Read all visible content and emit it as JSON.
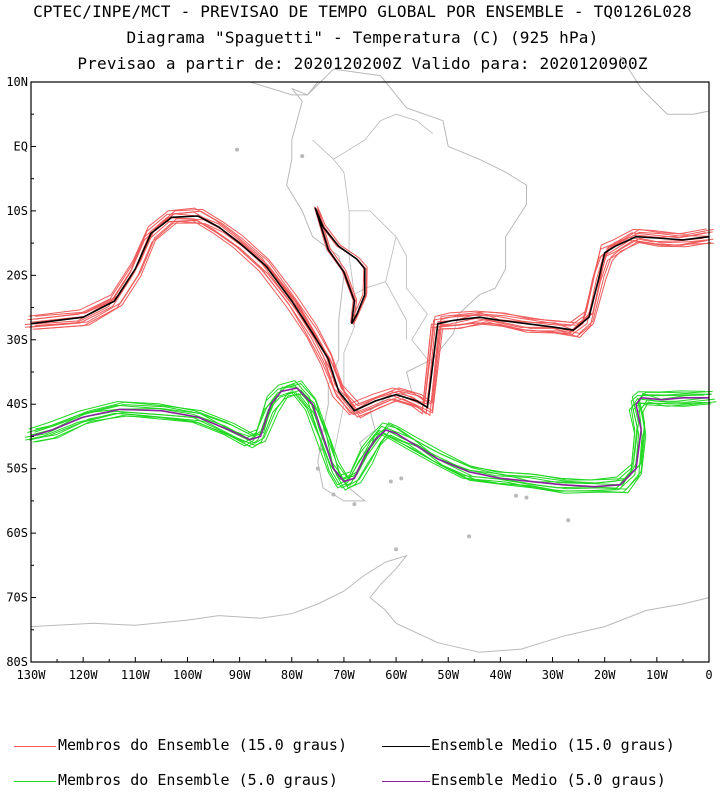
{
  "header": {
    "line1": "CPTEC/INPE/MCT - PREVISAO DE TEMPO GLOBAL POR ENSEMBLE - TQ0126L028",
    "line2": "Diagrama \"Spaguetti\" - Temperatura (C) (925 hPa)",
    "line3": "Previsao a partir de: 2020120200Z  Valido para: 2020120900Z"
  },
  "chart_data": {
    "type": "line",
    "map_background": "South America and Antarctic coastlines (gray)",
    "xlim": [
      -130,
      0
    ],
    "ylim": [
      -80,
      10
    ],
    "x_ticks": [
      "130W",
      "120W",
      "110W",
      "100W",
      "90W",
      "80W",
      "70W",
      "60W",
      "50W",
      "40W",
      "30W",
      "20W",
      "10W",
      "0"
    ],
    "y_ticks": [
      "10N",
      "EQ",
      "10S",
      "20S",
      "30S",
      "40S",
      "50S",
      "60S",
      "70S",
      "80S"
    ],
    "legend_position": "bottom",
    "series": [
      {
        "name": "Membros do Ensemble (15.0 graus)",
        "color": "#f05a5a",
        "role": "members",
        "isotherm": 15.0,
        "x": [
          -130,
          -120,
          -114,
          -110,
          -107,
          -103,
          -98,
          -94,
          -90,
          -85,
          -80,
          -76,
          -73,
          -71,
          -68,
          -64,
          -60,
          -56,
          -54,
          -52,
          -49,
          -44,
          -40,
          -35,
          -30,
          -26,
          -23,
          -21,
          -20,
          -18,
          -14,
          -10,
          -5,
          0
        ],
        "y": [
          -27.5,
          -26.5,
          -24,
          -19,
          -13.5,
          -11,
          -10.8,
          -12.5,
          -15,
          -18.5,
          -24,
          -29,
          -33,
          -38,
          -41,
          -39.5,
          -38.5,
          -39.5,
          -40.5,
          -27.5,
          -27,
          -26.5,
          -27,
          -27.5,
          -28,
          -28.5,
          -26.5,
          -20,
          -16.5,
          -15.5,
          -14,
          -14.2,
          -14.5,
          -14
        ]
      },
      {
        "name": "Ensemble Medio (15.0 graus)",
        "color": "#000000",
        "role": "mean",
        "isotherm": 15.0,
        "x": [
          -130,
          -120,
          -114,
          -110,
          -107,
          -103,
          -98,
          -94,
          -90,
          -85,
          -80,
          -76,
          -73,
          -71,
          -68,
          -64,
          -60,
          -56,
          -54,
          -52,
          -49,
          -44,
          -40,
          -35,
          -30,
          -26,
          -23,
          -21,
          -20,
          -18,
          -14,
          -10,
          -5,
          0
        ],
        "y": [
          -27.5,
          -26.5,
          -24,
          -19,
          -13.5,
          -11,
          -10.8,
          -12.5,
          -15,
          -18.5,
          -24,
          -29,
          -33,
          -38,
          -41,
          -39.5,
          -38.5,
          -39.5,
          -40.5,
          -27.5,
          -27,
          -26.5,
          -27,
          -27.5,
          -28,
          -28.5,
          -26.5,
          -20,
          -16.5,
          -15.5,
          -14,
          -14.2,
          -14.5,
          -14
        ]
      },
      {
        "name": "Ensemble Medio (15.0 graus) - Andes",
        "color": "#000000",
        "role": "mean-closed",
        "isotherm": 15.0,
        "x": [
          -75.5,
          -74,
          -71,
          -67.5,
          -66,
          -66,
          -67.5,
          -68.5,
          -68,
          -70,
          -73,
          -75.5
        ],
        "y": [
          -9.5,
          -12.5,
          -15.5,
          -17.5,
          -19,
          -23,
          -26,
          -27.5,
          -24,
          -19.5,
          -16,
          -9.5
        ]
      },
      {
        "name": "Membros do Ensemble (5.0 graus)",
        "color": "#22d722",
        "role": "members",
        "isotherm": 5.0,
        "x": [
          -130,
          -126,
          -120,
          -113,
          -105,
          -98,
          -92,
          -88,
          -86,
          -84,
          -82,
          -79,
          -76,
          -74,
          -72,
          -70,
          -68,
          -66,
          -64,
          -62,
          -60,
          -57,
          -52,
          -46,
          -40,
          -34,
          -28,
          -22,
          -17,
          -14,
          -13,
          -14,
          -13,
          -9,
          -5,
          0
        ],
        "y": [
          -45,
          -44,
          -42,
          -40.8,
          -41,
          -42,
          -44,
          -45.5,
          -45,
          -40,
          -38,
          -37.5,
          -40,
          -45,
          -50,
          -52,
          -51.5,
          -48,
          -45.5,
          -44,
          -44.5,
          -46,
          -48.5,
          -50.5,
          -51.5,
          -52,
          -52.5,
          -52.8,
          -52.5,
          -50,
          -44,
          -40,
          -39,
          -39.3,
          -39,
          -39
        ]
      },
      {
        "name": "Ensemble Medio (5.0 graus)",
        "color": "#8b1f9e",
        "role": "mean",
        "isotherm": 5.0,
        "x": [
          -130,
          -126,
          -120,
          -113,
          -105,
          -98,
          -92,
          -88,
          -86,
          -84,
          -82,
          -79,
          -76,
          -74,
          -72,
          -70,
          -68,
          -66,
          -64,
          -62,
          -60,
          -57,
          -52,
          -46,
          -40,
          -34,
          -28,
          -22,
          -17,
          -14,
          -13,
          -14,
          -13,
          -9,
          -5,
          0
        ],
        "y": [
          -45,
          -44,
          -42,
          -40.8,
          -41,
          -42,
          -44,
          -45.5,
          -45,
          -40,
          -38,
          -37.5,
          -40,
          -45,
          -50,
          -52,
          -51.5,
          -48,
          -45.5,
          -44,
          -44.5,
          -46,
          -48.5,
          -50.5,
          -51.5,
          -52,
          -52.5,
          -52.8,
          -52.5,
          -50,
          -44,
          -40,
          -39,
          -39.3,
          -39,
          -39
        ]
      }
    ]
  },
  "legend": [
    {
      "label": "Membros do Ensemble (15.0 graus)",
      "color": "#f05a5a"
    },
    {
      "label": "Ensemble Medio (15.0 graus)",
      "color": "#000000"
    },
    {
      "label": "Membros do Ensemble (5.0 graus)",
      "color": "#22d722"
    },
    {
      "label": "Ensemble Medio (5.0 graus)",
      "color": "#8b1f9e"
    }
  ]
}
